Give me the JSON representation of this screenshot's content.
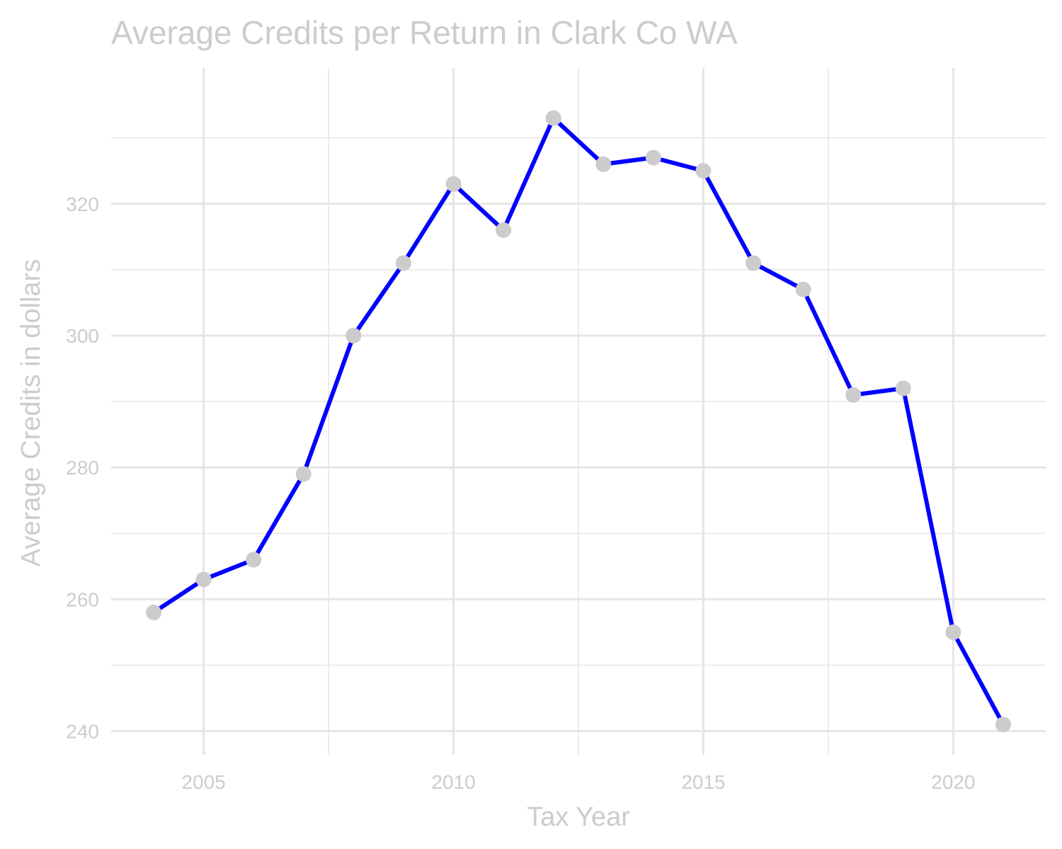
{
  "chart_data": {
    "type": "line",
    "title": "Average Credits per Return in Clark Co WA",
    "xlabel": "Tax Year",
    "ylabel": "Average Credits in dollars",
    "x": [
      2004,
      2005,
      2006,
      2007,
      2008,
      2009,
      2010,
      2011,
      2012,
      2013,
      2014,
      2015,
      2016,
      2017,
      2018,
      2019,
      2020,
      2021
    ],
    "series": [
      {
        "values": [
          258,
          263,
          266,
          279,
          300,
          311,
          323,
          316,
          333,
          326,
          327,
          325,
          311,
          307,
          291,
          292,
          255,
          241
        ]
      }
    ],
    "xlim": [
      2003.15,
      2021.85
    ],
    "ylim": [
      236.4,
      340.6
    ],
    "x_ticks": [
      "2005",
      "2010",
      "2015",
      "2020"
    ],
    "y_ticks": [
      "240",
      "260",
      "280",
      "300",
      "320"
    ],
    "grid": true,
    "legend": "none",
    "colors": {
      "line": "#0000ff",
      "points": "#cccccc",
      "text": "#cccccc",
      "grid": "#e5e5e5"
    }
  }
}
